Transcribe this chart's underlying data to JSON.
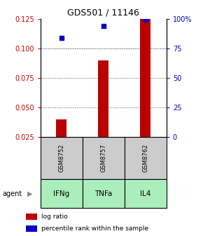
{
  "title": "GDS501 / 11146",
  "samples": [
    "GSM8752",
    "GSM8757",
    "GSM8762"
  ],
  "agents": [
    "IFNg",
    "TNFa",
    "IL4"
  ],
  "bar_values": [
    0.04,
    0.09,
    0.125
  ],
  "percentile_values": [
    0.109,
    0.119,
    0.1245
  ],
  "bar_color": "#bb0000",
  "dot_color": "#0000cc",
  "ylim_left": [
    0.025,
    0.125
  ],
  "yticks_left": [
    0.025,
    0.05,
    0.075,
    0.1,
    0.125
  ],
  "yticks_right": [
    0,
    25,
    50,
    75,
    100
  ],
  "left_axis_color": "#cc0000",
  "right_axis_color": "#0000cc",
  "bar_width": 0.25,
  "agent_bg_color": "#aaeebb",
  "sample_bg_color": "#cccccc",
  "legend_bar_label": "log ratio",
  "legend_dot_label": "percentile rank within the sample",
  "agent_row_label": "agent",
  "grid_color": "#555555"
}
